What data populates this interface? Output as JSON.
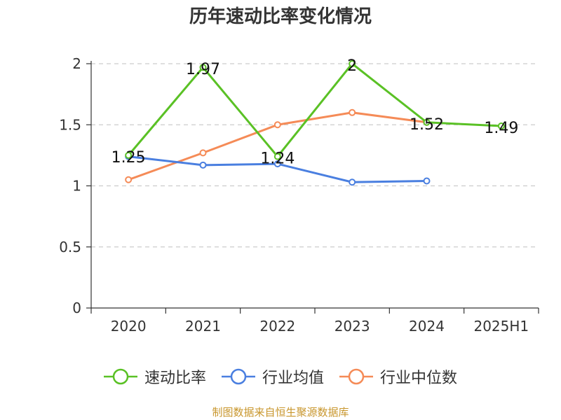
{
  "title": "历年速动比率变化情况",
  "source": "制图数据来自恒生聚源数据库",
  "chart_data": {
    "type": "line",
    "title": "历年速动比率变化情况",
    "categories": [
      "2020",
      "2021",
      "2022",
      "2023",
      "2024",
      "2025H1"
    ],
    "ylim": [
      0,
      2
    ],
    "yticks": [
      "0",
      "0.5",
      "1",
      "1.5",
      "2"
    ],
    "grid": true,
    "legend_position": "bottom",
    "series": [
      {
        "name": "速动比率",
        "color": "#5ac125",
        "values": [
          1.25,
          1.97,
          1.24,
          2,
          1.52,
          1.49
        ],
        "labels": [
          "1.25",
          "1.97",
          "1.24",
          "2",
          "1.52",
          "1.49"
        ]
      },
      {
        "name": "行业均值",
        "color": "#4a7fe0",
        "values": [
          1.24,
          1.17,
          1.18,
          1.03,
          1.04,
          null
        ]
      },
      {
        "name": "行业中位数",
        "color": "#f58b57",
        "values": [
          1.05,
          1.27,
          1.5,
          1.6,
          1.52,
          null
        ]
      }
    ]
  }
}
